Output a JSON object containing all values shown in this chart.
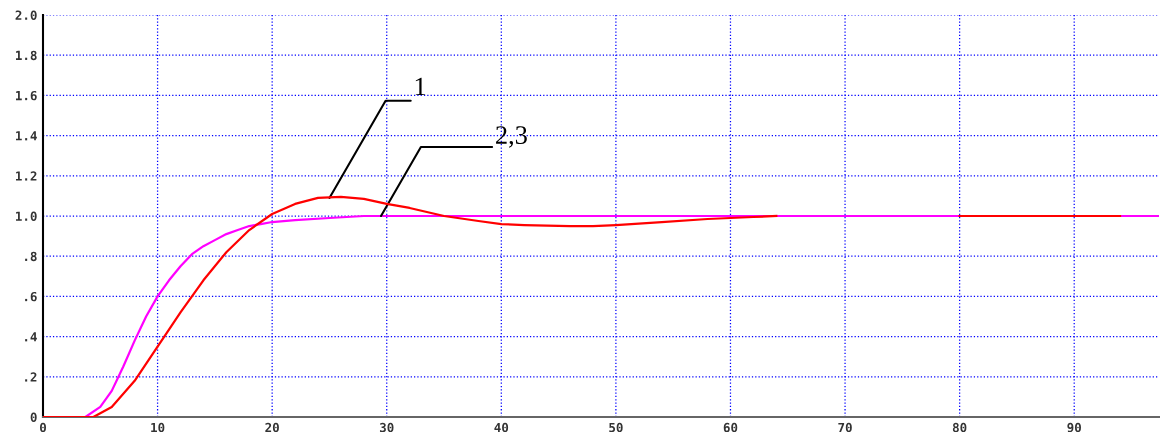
{
  "chart_data": {
    "type": "line",
    "xlim": [
      0,
      97.4
    ],
    "xticks": [
      0,
      10,
      20,
      30,
      40,
      50,
      60,
      70,
      80,
      90
    ],
    "ylim": [
      0,
      2.0
    ],
    "yticks": [
      0,
      {
        "value": 0.2,
        "label": ".2"
      },
      {
        "value": 0.4,
        "label": ".4"
      },
      {
        "value": 0.6,
        "label": ".6"
      },
      {
        "value": 0.8,
        "label": ".8"
      },
      {
        "value": 1.0,
        "label": "1.0"
      },
      {
        "value": 1.2,
        "label": "1.2"
      },
      {
        "value": 1.4,
        "label": "1.4"
      },
      {
        "value": 1.6,
        "label": "1.6"
      },
      {
        "value": 1.8,
        "label": "1.8"
      },
      {
        "value": 2.0,
        "label": "2.0"
      }
    ],
    "grid": true,
    "line_style": "solid",
    "series": [
      {
        "color": "#ff00ff",
        "x": [
          0,
          3.7,
          5,
          6,
          7,
          8,
          9,
          10,
          11,
          12,
          13,
          14,
          15,
          16,
          17,
          18,
          19,
          20,
          22,
          25,
          28,
          97.4
        ],
        "values": [
          0,
          0,
          0.05,
          0.13,
          0.25,
          0.38,
          0.5,
          0.6,
          0.68,
          0.75,
          0.81,
          0.85,
          0.88,
          0.91,
          0.93,
          0.95,
          0.96,
          0.97,
          0.98,
          0.99,
          1.0,
          1.0
        ]
      },
      {
        "color": "#ff0000",
        "x": [
          0,
          4.4,
          6,
          8,
          10,
          12,
          14,
          16,
          18,
          20,
          22,
          24,
          26,
          28,
          30,
          32,
          35,
          38,
          40,
          42,
          46,
          48,
          50,
          54,
          58,
          62,
          64
        ],
        "values": [
          0,
          0,
          0.05,
          0.18,
          0.35,
          0.52,
          0.68,
          0.82,
          0.93,
          1.01,
          1.06,
          1.09,
          1.095,
          1.085,
          1.06,
          1.04,
          1.0,
          0.975,
          0.96,
          0.955,
          0.95,
          0.95,
          0.955,
          0.97,
          0.985,
          0.995,
          1.0
        ]
      },
      {
        "color": "#ff0000",
        "x": [
          80,
          94
        ],
        "values": [
          1.0,
          1.0
        ]
      }
    ],
    "annotations": [
      {
        "text": "1",
        "x": 25,
        "y": 1.09
      },
      {
        "text": "2,3",
        "x": 29.5,
        "y": 1.0
      }
    ]
  }
}
